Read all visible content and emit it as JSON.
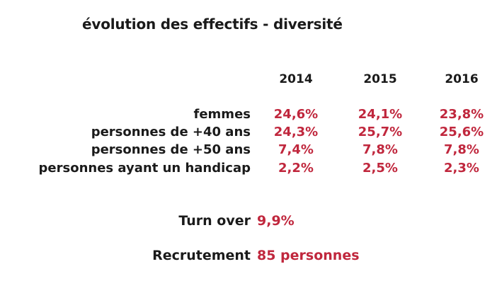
{
  "title": "évolution des effectifs - diversité",
  "years": [
    "2014",
    "2015",
    "2016"
  ],
  "rows": [
    {
      "label": "femmes",
      "values": [
        "24,6%",
        "24,1%",
        "23,8%"
      ]
    },
    {
      "label": "personnes de +40 ans",
      "values": [
        "24,3%",
        "25,7%",
        "25,6%"
      ]
    },
    {
      "label": "personnes de +50 ans",
      "values": [
        "7,4%",
        "7,8%",
        "7,8%"
      ]
    },
    {
      "label": "personnes ayant un handicap",
      "values": [
        "2,2%",
        "2,5%",
        "2,3%"
      ]
    }
  ],
  "turnover": {
    "label": "Turn over",
    "value": "9,9%"
  },
  "recrutement": {
    "label": "Recrutement",
    "value": "85 personnes"
  },
  "colors": {
    "accent": "#c0273d",
    "text": "#1a1a1a"
  }
}
